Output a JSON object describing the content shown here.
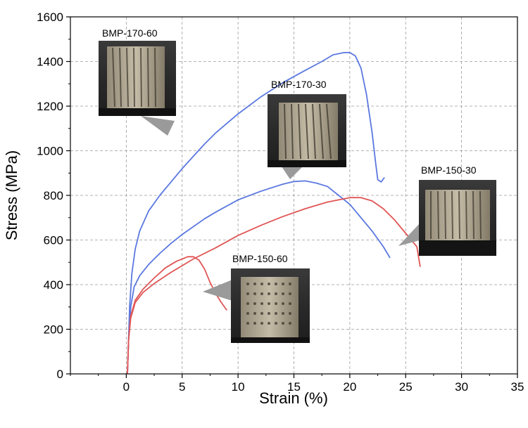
{
  "chart_data": {
    "type": "line",
    "xlabel": "Strain (%)",
    "ylabel": "Stress (MPa)",
    "xlim": [
      -5,
      35
    ],
    "ylim": [
      0,
      1600
    ],
    "xticks": [
      0,
      5,
      10,
      15,
      20,
      25,
      30,
      35
    ],
    "yticks": [
      0,
      200,
      400,
      600,
      800,
      1000,
      1200,
      1400,
      1600
    ],
    "grid": true,
    "series": [
      {
        "name": "BMP-170-60",
        "color": "#5b78e0",
        "points": [
          [
            0.1,
            0
          ],
          [
            0.2,
            150
          ],
          [
            0.3,
            300
          ],
          [
            0.5,
            450
          ],
          [
            0.8,
            560
          ],
          [
            1.2,
            640
          ],
          [
            2,
            730
          ],
          [
            3,
            800
          ],
          [
            4,
            860
          ],
          [
            5,
            920
          ],
          [
            6,
            975
          ],
          [
            7,
            1030
          ],
          [
            8,
            1080
          ],
          [
            10,
            1165
          ],
          [
            12,
            1240
          ],
          [
            14,
            1305
          ],
          [
            16,
            1360
          ],
          [
            17.5,
            1400
          ],
          [
            18.5,
            1430
          ],
          [
            19.5,
            1440
          ],
          [
            20,
            1440
          ],
          [
            20.5,
            1425
          ],
          [
            21,
            1370
          ],
          [
            21.5,
            1250
          ],
          [
            22,
            1080
          ],
          [
            22.3,
            950
          ],
          [
            22.5,
            870
          ],
          [
            22.8,
            860
          ],
          [
            23.1,
            880
          ]
        ]
      },
      {
        "name": "BMP-170-30",
        "color": "#5b78e0",
        "points": [
          [
            0.1,
            0
          ],
          [
            0.2,
            150
          ],
          [
            0.4,
            300
          ],
          [
            0.7,
            390
          ],
          [
            1.2,
            440
          ],
          [
            2,
            490
          ],
          [
            3,
            540
          ],
          [
            4,
            585
          ],
          [
            5,
            625
          ],
          [
            6,
            660
          ],
          [
            7,
            695
          ],
          [
            8,
            725
          ],
          [
            10,
            780
          ],
          [
            12,
            818
          ],
          [
            14,
            850
          ],
          [
            15,
            862
          ],
          [
            16,
            865
          ],
          [
            17,
            855
          ],
          [
            18,
            840
          ],
          [
            19,
            800
          ],
          [
            20,
            760
          ],
          [
            21,
            700
          ],
          [
            22,
            640
          ],
          [
            23,
            570
          ],
          [
            23.6,
            520
          ]
        ]
      },
      {
        "name": "BMP-150-60",
        "color": "#e05555",
        "points": [
          [
            0.1,
            0
          ],
          [
            0.2,
            150
          ],
          [
            0.4,
            260
          ],
          [
            0.8,
            330
          ],
          [
            1.5,
            380
          ],
          [
            2.5,
            430
          ],
          [
            3.5,
            475
          ],
          [
            4.5,
            505
          ],
          [
            5.5,
            525
          ],
          [
            6,
            525
          ],
          [
            6.5,
            510
          ],
          [
            7,
            470
          ],
          [
            7.5,
            410
          ],
          [
            8,
            360
          ],
          [
            8.5,
            320
          ],
          [
            9,
            285
          ]
        ]
      },
      {
        "name": "BMP-150-30",
        "color": "#e05555",
        "points": [
          [
            0.1,
            0
          ],
          [
            0.2,
            150
          ],
          [
            0.4,
            250
          ],
          [
            0.8,
            320
          ],
          [
            1.5,
            365
          ],
          [
            2.5,
            405
          ],
          [
            4,
            455
          ],
          [
            5,
            485
          ],
          [
            6,
            515
          ],
          [
            8,
            565
          ],
          [
            10,
            620
          ],
          [
            12,
            665
          ],
          [
            14,
            705
          ],
          [
            16,
            740
          ],
          [
            18,
            770
          ],
          [
            20,
            790
          ],
          [
            21,
            790
          ],
          [
            22,
            775
          ],
          [
            23,
            740
          ],
          [
            24,
            690
          ],
          [
            25,
            630
          ],
          [
            26,
            570
          ],
          [
            26.3,
            480
          ]
        ]
      }
    ],
    "annotations": [
      {
        "label": "BMP-170-60"
      },
      {
        "label": "BMP-170-30"
      },
      {
        "label": "BMP-150-60"
      },
      {
        "label": "BMP-150-30"
      }
    ]
  }
}
